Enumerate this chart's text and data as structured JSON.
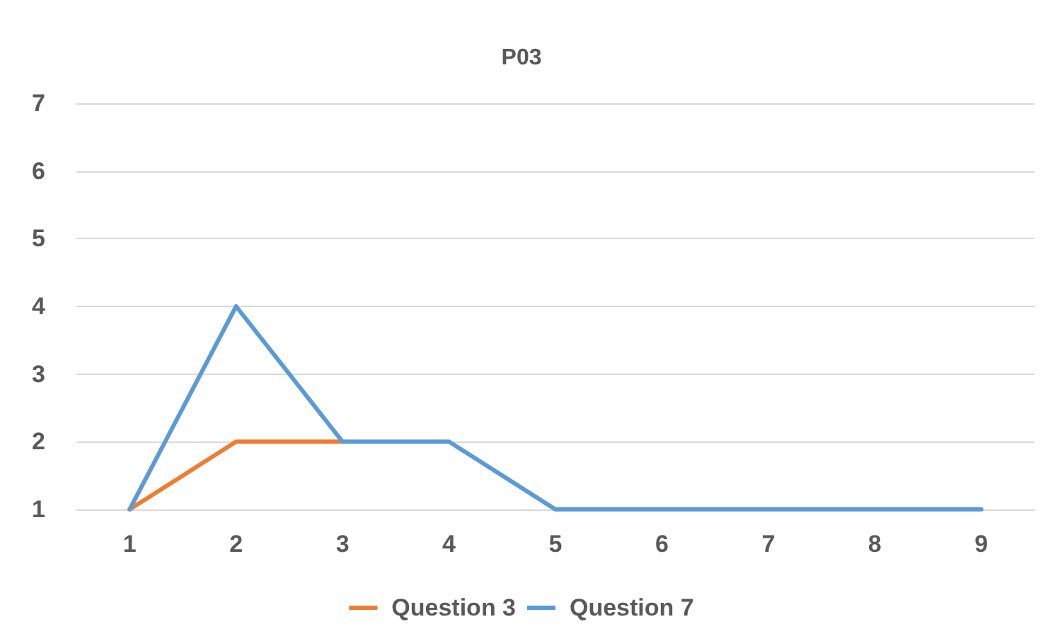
{
  "chart_data": {
    "type": "line",
    "title": "P03",
    "categories": [
      "1",
      "2",
      "3",
      "4",
      "5",
      "6",
      "7",
      "8",
      "9"
    ],
    "series": [
      {
        "name": "Question 3",
        "color": "#ed7d31",
        "values": [
          1,
          2,
          2,
          null,
          null,
          null,
          null,
          null,
          null
        ]
      },
      {
        "name": "Question 7",
        "color": "#5b9bd5",
        "values": [
          1,
          4,
          2,
          2,
          1,
          1,
          1,
          1,
          1
        ]
      }
    ],
    "ylim": [
      1,
      7
    ],
    "yticks": [
      1,
      2,
      3,
      4,
      5,
      6,
      7
    ],
    "grid": "y",
    "legend": "bottom",
    "marker": "none",
    "line_style": "solid"
  }
}
